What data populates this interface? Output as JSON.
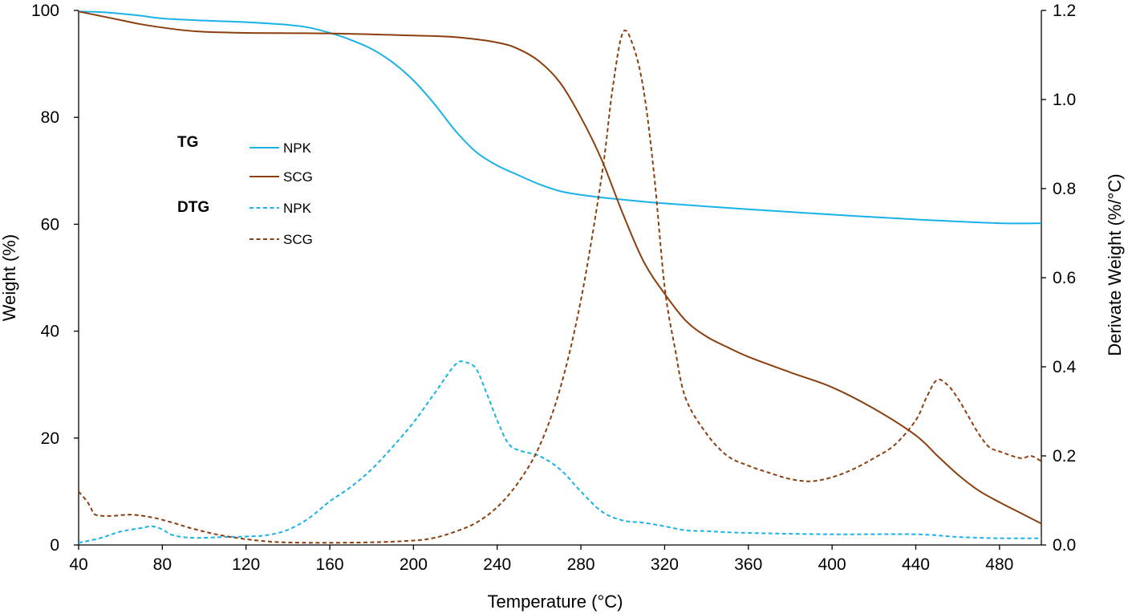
{
  "chart_data": {
    "type": "line",
    "xlabel": "Temperature (°C)",
    "ylabel": "Weight (%)",
    "y2label": "Derivate Weight (%/°C)",
    "xlim": [
      40,
      500
    ],
    "ylim": [
      0,
      100
    ],
    "y2lim": [
      0,
      1.2
    ],
    "x_ticks": [
      40,
      80,
      120,
      160,
      200,
      240,
      280,
      320,
      360,
      400,
      440,
      480
    ],
    "y_ticks": [
      0,
      20,
      40,
      60,
      80,
      100
    ],
    "y2_ticks": [
      "0.0",
      "0.2",
      "0.4",
      "0.6",
      "0.8",
      "1.0",
      "1.2"
    ],
    "grid": false,
    "legend": {
      "placement": "upper-left",
      "groups": [
        {
          "title": "TG",
          "items": [
            {
              "label": "NPK",
              "series": "tg_npk"
            },
            {
              "label": "SCG",
              "series": "tg_scg"
            }
          ]
        },
        {
          "title": "DTG",
          "items": [
            {
              "label": "NPK",
              "series": "dtg_npk"
            },
            {
              "label": "SCG",
              "series": "dtg_scg"
            }
          ]
        }
      ]
    },
    "series": [
      {
        "id": "tg_npk",
        "group": "TG",
        "name": "NPK",
        "axis": "left",
        "color": "#1ab2e8",
        "dash": "solid",
        "points": [
          [
            40,
            99.8
          ],
          [
            50,
            99.7
          ],
          [
            60,
            99.4
          ],
          [
            70,
            99.0
          ],
          [
            80,
            98.5
          ],
          [
            100,
            98.1
          ],
          [
            120,
            97.8
          ],
          [
            140,
            97.3
          ],
          [
            150,
            96.8
          ],
          [
            160,
            95.8
          ],
          [
            170,
            94.5
          ],
          [
            180,
            92.8
          ],
          [
            190,
            90.3
          ],
          [
            200,
            86.9
          ],
          [
            210,
            82.5
          ],
          [
            220,
            77.5
          ],
          [
            230,
            73.5
          ],
          [
            240,
            71.0
          ],
          [
            250,
            69.2
          ],
          [
            260,
            67.5
          ],
          [
            270,
            66.2
          ],
          [
            280,
            65.5
          ],
          [
            290,
            65.0
          ],
          [
            300,
            64.6
          ],
          [
            320,
            63.9
          ],
          [
            360,
            62.8
          ],
          [
            400,
            61.8
          ],
          [
            440,
            60.9
          ],
          [
            480,
            60.2
          ],
          [
            500,
            60.2
          ]
        ]
      },
      {
        "id": "tg_scg",
        "group": "TG",
        "name": "SCG",
        "axis": "left",
        "color": "#8b3f0f",
        "dash": "solid",
        "points": [
          [
            40,
            99.8
          ],
          [
            50,
            99.0
          ],
          [
            60,
            98.2
          ],
          [
            70,
            97.4
          ],
          [
            80,
            96.8
          ],
          [
            90,
            96.3
          ],
          [
            100,
            96.0
          ],
          [
            120,
            95.8
          ],
          [
            160,
            95.7
          ],
          [
            200,
            95.3
          ],
          [
            220,
            95.0
          ],
          [
            240,
            94.0
          ],
          [
            250,
            92.8
          ],
          [
            260,
            90.5
          ],
          [
            270,
            86.5
          ],
          [
            280,
            80.0
          ],
          [
            290,
            72.0
          ],
          [
            300,
            62.0
          ],
          [
            310,
            53.0
          ],
          [
            320,
            47.0
          ],
          [
            330,
            42.0
          ],
          [
            340,
            39.0
          ],
          [
            350,
            37.0
          ],
          [
            360,
            35.2
          ],
          [
            380,
            32.3
          ],
          [
            400,
            29.5
          ],
          [
            420,
            25.5
          ],
          [
            440,
            20.5
          ],
          [
            450,
            16.8
          ],
          [
            460,
            13.2
          ],
          [
            470,
            10.2
          ],
          [
            480,
            8.0
          ],
          [
            490,
            6.0
          ],
          [
            500,
            4.0
          ]
        ]
      },
      {
        "id": "dtg_npk",
        "group": "DTG",
        "name": "NPK",
        "axis": "right",
        "color": "#1ab2e8",
        "dash": "dashed",
        "points": [
          [
            40,
            0.005
          ],
          [
            50,
            0.015
          ],
          [
            60,
            0.03
          ],
          [
            70,
            0.038
          ],
          [
            75,
            0.042
          ],
          [
            80,
            0.035
          ],
          [
            85,
            0.022
          ],
          [
            95,
            0.016
          ],
          [
            110,
            0.018
          ],
          [
            120,
            0.019
          ],
          [
            130,
            0.022
          ],
          [
            140,
            0.034
          ],
          [
            150,
            0.06
          ],
          [
            160,
            0.098
          ],
          [
            170,
            0.13
          ],
          [
            180,
            0.17
          ],
          [
            190,
            0.22
          ],
          [
            200,
            0.275
          ],
          [
            210,
            0.34
          ],
          [
            220,
            0.405
          ],
          [
            225,
            0.41
          ],
          [
            230,
            0.395
          ],
          [
            235,
            0.34
          ],
          [
            240,
            0.28
          ],
          [
            245,
            0.23
          ],
          [
            250,
            0.213
          ],
          [
            260,
            0.2
          ],
          [
            270,
            0.17
          ],
          [
            280,
            0.12
          ],
          [
            290,
            0.075
          ],
          [
            300,
            0.055
          ],
          [
            310,
            0.05
          ],
          [
            320,
            0.042
          ],
          [
            330,
            0.033
          ],
          [
            340,
            0.031
          ],
          [
            360,
            0.027
          ],
          [
            400,
            0.024
          ],
          [
            440,
            0.024
          ],
          [
            460,
            0.018
          ],
          [
            480,
            0.015
          ],
          [
            500,
            0.015
          ]
        ]
      },
      {
        "id": "dtg_scg",
        "group": "DTG",
        "name": "SCG",
        "axis": "right",
        "color": "#8b3f0f",
        "dash": "dashed",
        "points": [
          [
            40,
            0.12
          ],
          [
            44,
            0.098
          ],
          [
            46,
            0.082
          ],
          [
            48,
            0.068
          ],
          [
            55,
            0.065
          ],
          [
            65,
            0.068
          ],
          [
            75,
            0.062
          ],
          [
            85,
            0.05
          ],
          [
            95,
            0.036
          ],
          [
            110,
            0.02
          ],
          [
            130,
            0.008
          ],
          [
            150,
            0.005
          ],
          [
            180,
            0.006
          ],
          [
            200,
            0.01
          ],
          [
            210,
            0.016
          ],
          [
            220,
            0.03
          ],
          [
            230,
            0.05
          ],
          [
            240,
            0.085
          ],
          [
            250,
            0.14
          ],
          [
            260,
            0.22
          ],
          [
            270,
            0.35
          ],
          [
            280,
            0.55
          ],
          [
            290,
            0.83
          ],
          [
            295,
            1.02
          ],
          [
            300,
            1.15
          ],
          [
            305,
            1.12
          ],
          [
            310,
            1.02
          ],
          [
            315,
            0.83
          ],
          [
            320,
            0.58
          ],
          [
            325,
            0.44
          ],
          [
            330,
            0.33
          ],
          [
            340,
            0.25
          ],
          [
            350,
            0.2
          ],
          [
            360,
            0.178
          ],
          [
            370,
            0.162
          ],
          [
            380,
            0.148
          ],
          [
            390,
            0.143
          ],
          [
            400,
            0.152
          ],
          [
            410,
            0.17
          ],
          [
            420,
            0.195
          ],
          [
            430,
            0.225
          ],
          [
            440,
            0.28
          ],
          [
            445,
            0.33
          ],
          [
            450,
            0.37
          ],
          [
            455,
            0.36
          ],
          [
            460,
            0.33
          ],
          [
            465,
            0.29
          ],
          [
            470,
            0.25
          ],
          [
            475,
            0.22
          ],
          [
            480,
            0.21
          ],
          [
            490,
            0.195
          ],
          [
            495,
            0.2
          ],
          [
            500,
            0.188
          ]
        ]
      }
    ]
  }
}
